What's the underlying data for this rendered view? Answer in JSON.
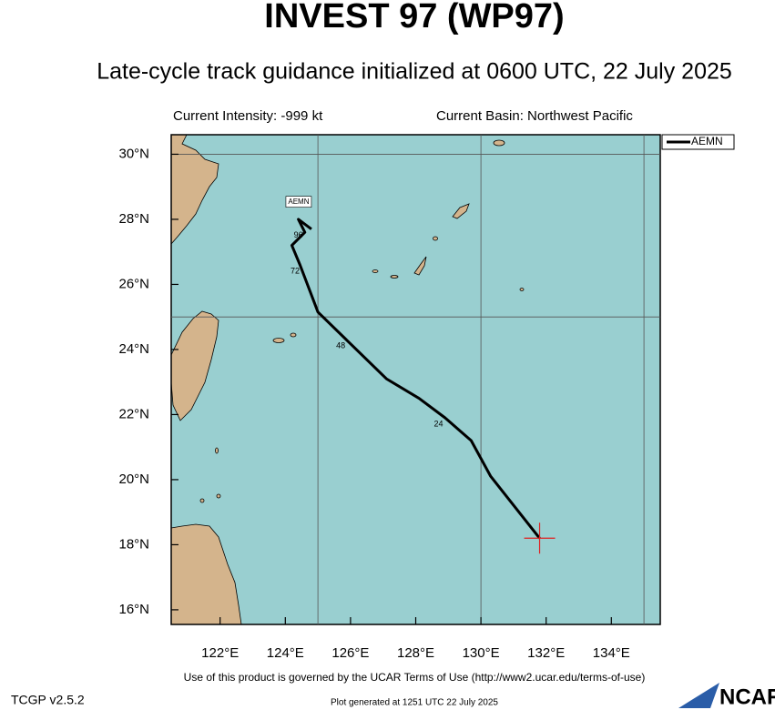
{
  "chart_data": {
    "type": "track",
    "title": "INVEST 97 (WP97)",
    "subtitle": "Late-cycle track guidance initialized at 0600 UTC, 22 July 2025",
    "intensity": "Current Intensity: -999 kt",
    "basin": "Current Basin: Northwest Pacific",
    "footer": "Use of this product is governed by the UCAR Terms of Use (http://www2.ucar.edu/terms-of-use)",
    "version": "TCGP v2.5.2",
    "generated": "Plot generated at 1251 UTC   22 July 2025",
    "logo": "NCAR",
    "xlim": [
      120.5,
      135.5
    ],
    "ylim": [
      15.55,
      30.6
    ],
    "xticks": [
      {
        "value": 122,
        "label": "122°E"
      },
      {
        "value": 124,
        "label": "124°E"
      },
      {
        "value": 126,
        "label": "126°E"
      },
      {
        "value": 128,
        "label": "128°E"
      },
      {
        "value": 130,
        "label": "130°E"
      },
      {
        "value": 132,
        "label": "132°E"
      },
      {
        "value": 134,
        "label": "134°E"
      }
    ],
    "yticks": [
      {
        "value": 16,
        "label": "16°N"
      },
      {
        "value": 18,
        "label": "18°N"
      },
      {
        "value": 20,
        "label": "20°N"
      },
      {
        "value": 22,
        "label": "22°N"
      },
      {
        "value": 24,
        "label": "24°N"
      },
      {
        "value": 26,
        "label": "26°N"
      },
      {
        "value": 28,
        "label": "28°N"
      },
      {
        "value": 30,
        "label": "30°N"
      }
    ],
    "xgrid": [
      125,
      130,
      135
    ],
    "ygrid": [
      25,
      30
    ],
    "legend": "upper right",
    "series": [
      {
        "name": "AEMN",
        "color": "#000000",
        "lon": [
          131.8,
          130.3,
          129.7,
          128.9,
          128.1,
          127.1,
          125.0,
          124.45,
          124.2,
          124.6,
          124.4,
          124.8
        ],
        "lat": [
          18.2,
          20.1,
          21.2,
          21.9,
          22.5,
          23.1,
          25.15,
          26.6,
          27.2,
          27.6,
          28.0,
          27.7
        ]
      }
    ],
    "tau_labels": [
      {
        "tau": 24,
        "lon": 128.7,
        "lat": 21.7
      },
      {
        "tau": 48,
        "lon": 125.7,
        "lat": 24.1
      },
      {
        "tau": 72,
        "lon": 124.3,
        "lat": 26.4
      },
      {
        "tau": 96,
        "lon": 124.4,
        "lat": 27.5
      }
    ],
    "current_color": "#e02020"
  }
}
